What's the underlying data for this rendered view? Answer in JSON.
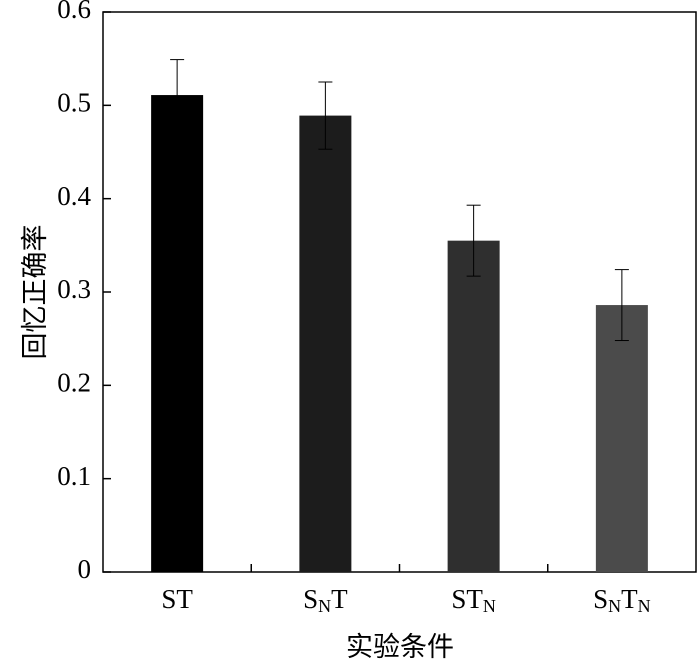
{
  "chart_data": {
    "type": "bar",
    "categories": [
      "ST",
      "SNT",
      "STN",
      "SNTN"
    ],
    "values": [
      0.511,
      0.489,
      0.355,
      0.286
    ],
    "errors": [
      0.038,
      0.036,
      0.038,
      0.038
    ],
    "colors": [
      "#000000",
      "#1c1c1c",
      "#2f2f2f",
      "#4b4b4b"
    ],
    "x_label": "实验条件",
    "y_label": "回忆正确率",
    "ylim": [
      0,
      0.6
    ],
    "yticks": [
      0,
      0.1,
      0.2,
      0.3,
      0.4,
      0.5,
      0.6
    ]
  }
}
